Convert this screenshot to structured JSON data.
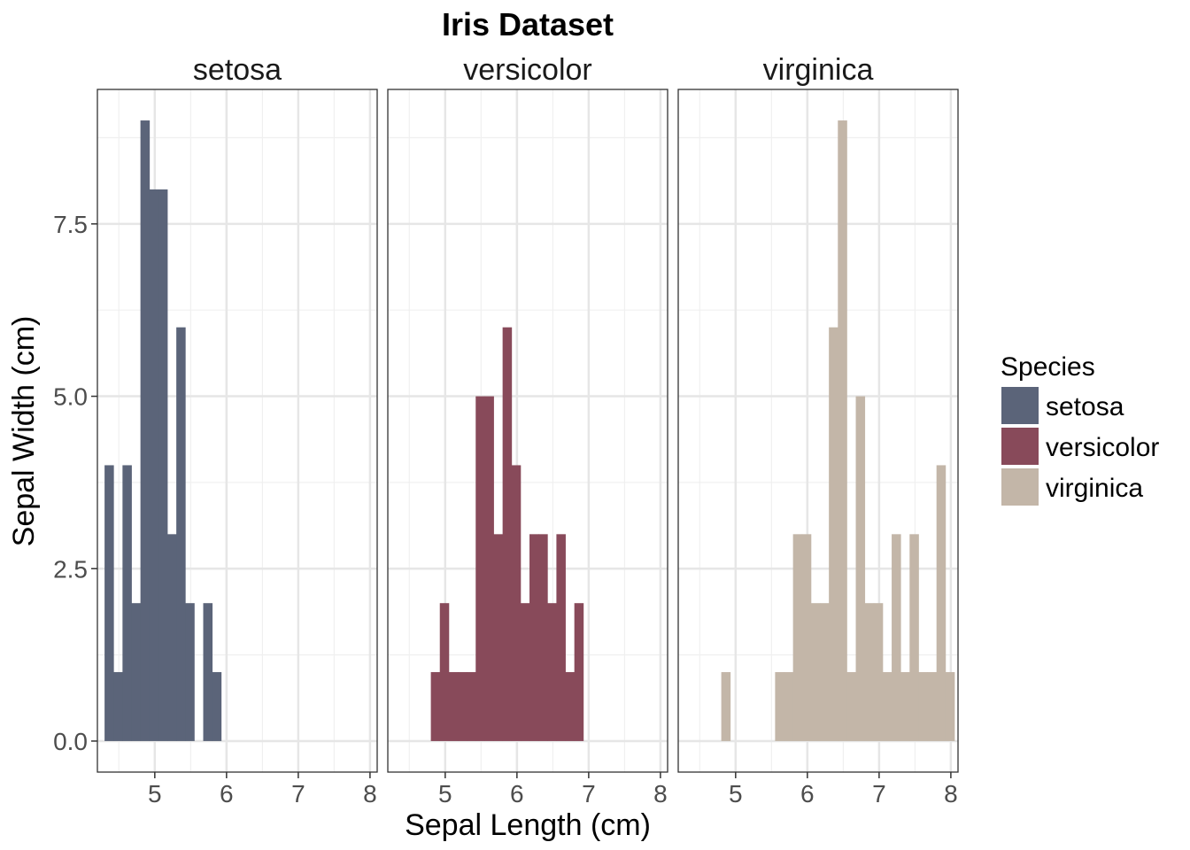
{
  "chart_data": {
    "type": "bar",
    "title": "Iris Dataset",
    "xlabel": "Sepal Length (cm)",
    "ylabel": "Sepal Width (cm)",
    "xlim": [
      4.2,
      8.1
    ],
    "ylim": [
      -0.45,
      9.45
    ],
    "xticks": [
      5,
      6,
      7,
      8
    ],
    "yticks": [
      0,
      2.5,
      5,
      7.5
    ],
    "ytick_labels": [
      "0.0",
      "2.5",
      "5.0",
      "7.5"
    ],
    "grid": true,
    "bin_width": 0.125,
    "legend": {
      "title": "Species",
      "position": "right",
      "entries": [
        {
          "label": "setosa",
          "color": "#5b6479"
        },
        {
          "label": "versicolor",
          "color": "#884a5a"
        },
        {
          "label": "virginica",
          "color": "#c3b6a8"
        }
      ]
    },
    "panels": [
      {
        "name": "setosa",
        "color": "#5b6479",
        "bin_left_edges": [
          4.3,
          4.425,
          4.55,
          4.675,
          4.8,
          4.925,
          5.05,
          5.175,
          5.3,
          5.425,
          5.55,
          5.675,
          5.8
        ],
        "counts": [
          4,
          1,
          4,
          2,
          9,
          8,
          8,
          3,
          6,
          2,
          0,
          2,
          1
        ]
      },
      {
        "name": "versicolor",
        "color": "#884a5a",
        "bin_left_edges": [
          4.8,
          4.925,
          5.05,
          5.175,
          5.3,
          5.425,
          5.55,
          5.675,
          5.8,
          5.925,
          6.05,
          6.175,
          6.3,
          6.425,
          6.55,
          6.675,
          6.8,
          6.925
        ],
        "counts": [
          1,
          2,
          1,
          1,
          1,
          5,
          5,
          3,
          6,
          4,
          2,
          3,
          3,
          2,
          3,
          1,
          2,
          0
        ]
      },
      {
        "name": "virginica",
        "color": "#c3b6a8",
        "bin_left_edges": [
          4.8,
          4.925,
          5.05,
          5.175,
          5.3,
          5.425,
          5.55,
          5.675,
          5.8,
          5.925,
          6.05,
          6.175,
          6.3,
          6.425,
          6.55,
          6.675,
          6.8,
          6.925,
          7.05,
          7.175,
          7.3,
          7.425,
          7.55,
          7.675,
          7.8,
          7.925
        ],
        "counts": [
          1,
          0,
          0,
          0,
          0,
          0,
          1,
          1,
          3,
          3,
          2,
          2,
          6,
          9,
          1,
          5,
          2,
          2,
          1,
          3,
          1,
          3,
          1,
          1,
          4,
          1
        ]
      }
    ]
  }
}
